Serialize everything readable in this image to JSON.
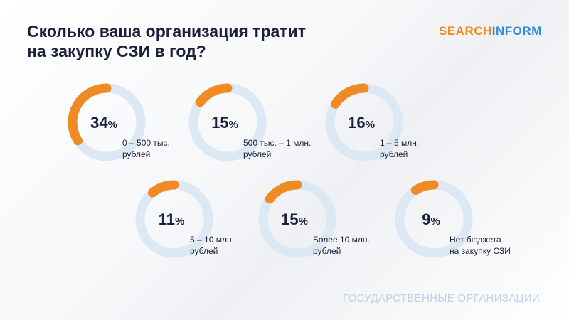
{
  "title": "Сколько ваша организация тратит\nна закупку СЗИ в год?",
  "logo": [
    "SEARCH",
    "INFORM"
  ],
  "footer": "ГОСУДАРСТВЕННЫЕ ОРГАНИЗАЦИИ",
  "chart_data": [
    {
      "type": "donut",
      "values": [
        34
      ],
      "value_labels": [
        "34%"
      ],
      "categories": [
        "0 – 500 тыс.\nрублей"
      ],
      "color": "#f08a24",
      "track_color": "#dce9f5"
    },
    {
      "type": "donut",
      "values": [
        15
      ],
      "value_labels": [
        "15%"
      ],
      "categories": [
        "500 тыс. – 1 млн.\nрублей"
      ],
      "color": "#f08a24",
      "track_color": "#dce9f5"
    },
    {
      "type": "donut",
      "values": [
        16
      ],
      "value_labels": [
        "16%"
      ],
      "categories": [
        "1 – 5 млн.\nрублей"
      ],
      "color": "#f08a24",
      "track_color": "#dce9f5"
    },
    {
      "type": "donut",
      "values": [
        11
      ],
      "value_labels": [
        "11%"
      ],
      "categories": [
        "5 – 10 млн.\nрублей"
      ],
      "color": "#f08a24",
      "track_color": "#dce9f5"
    },
    {
      "type": "donut",
      "values": [
        15
      ],
      "value_labels": [
        "15%"
      ],
      "categories": [
        "Более 10 млн.\nрублей"
      ],
      "color": "#f08a24",
      "track_color": "#dce9f5"
    },
    {
      "type": "donut",
      "values": [
        9
      ],
      "value_labels": [
        "9%"
      ],
      "categories": [
        "Нет бюджета\nна закупку СЗИ"
      ],
      "color": "#f08a24",
      "track_color": "#dce9f5"
    }
  ]
}
